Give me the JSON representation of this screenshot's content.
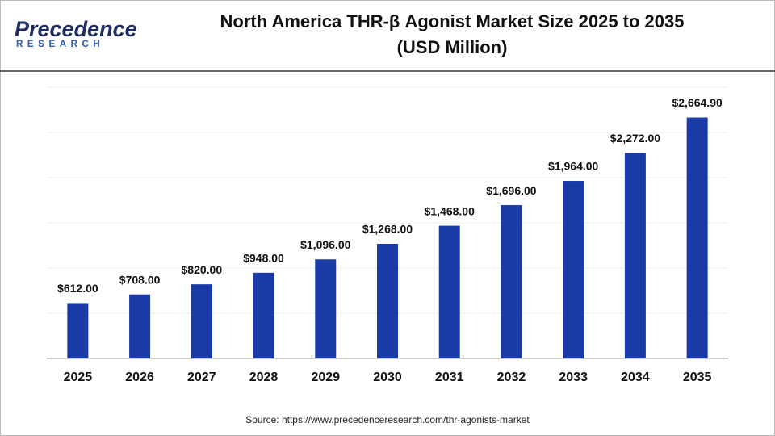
{
  "logo": {
    "name": "Precedence",
    "tagline": "RESEARCH"
  },
  "chart_data": {
    "type": "bar",
    "title": "North America THR-β Agonist Market Size 2025 to 2035",
    "subtitle": "(USD Million)",
    "categories": [
      "2025",
      "2026",
      "2027",
      "2028",
      "2029",
      "2030",
      "2031",
      "2032",
      "2033",
      "2034",
      "2035"
    ],
    "values": [
      612,
      708,
      820,
      948,
      1096,
      1268,
      1468,
      1696,
      1964,
      2272,
      2664.9
    ],
    "value_labels": [
      "$612.00",
      "$708.00",
      "$820.00",
      "$948.00",
      "$1,096.00",
      "$1,268.00",
      "$1,468.00",
      "$1,696.00",
      "$1,964.00",
      "$2,272.00",
      "$2,664.90"
    ],
    "color": "#1a3aa8",
    "ylim": [
      0,
      3000
    ],
    "yticks": [
      0,
      500,
      1000,
      1500,
      2000,
      2500,
      3000
    ],
    "grid": true,
    "source": "Source: https://www.precedenceresearch.com/thr-agonists-market"
  }
}
